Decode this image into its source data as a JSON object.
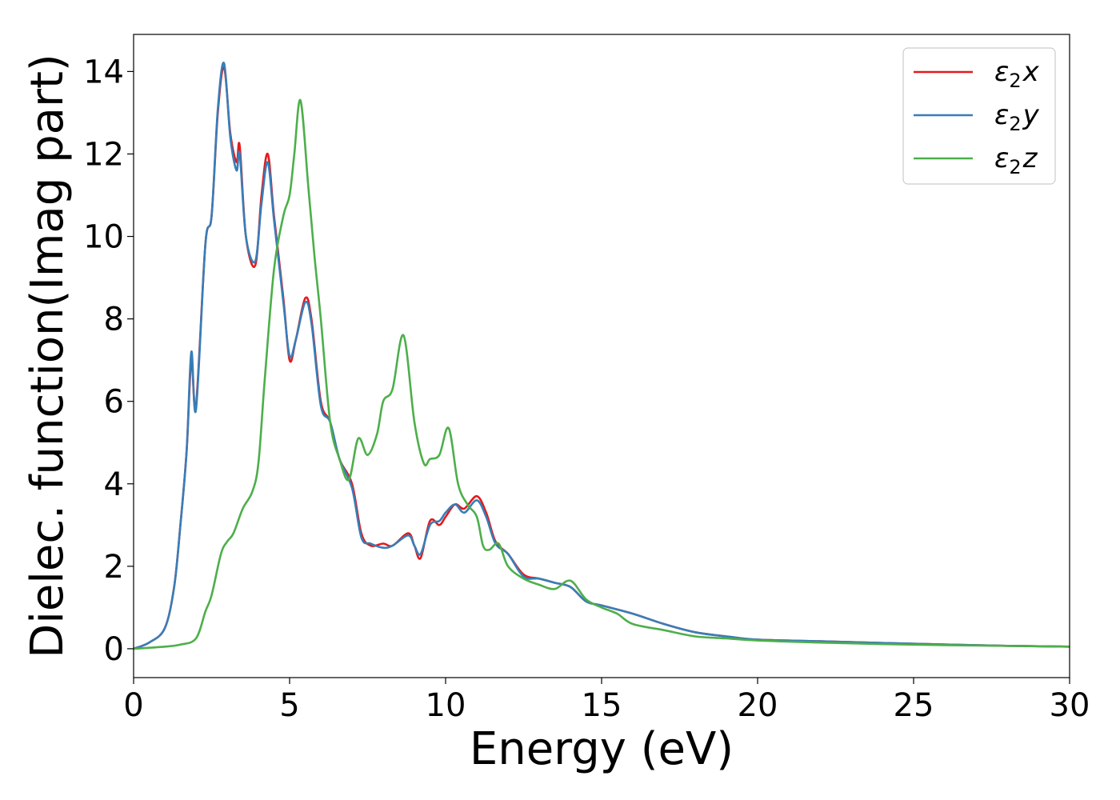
{
  "chart_data": {
    "type": "line",
    "xlabel": "Energy (eV)",
    "ylabel": "Dielec. function(Imag part)",
    "xlim": [
      0,
      30
    ],
    "ylim": [
      -0.7,
      14.9
    ],
    "xticks": [
      "0",
      "5",
      "10",
      "15",
      "20",
      "25",
      "30"
    ],
    "yticks": [
      "0",
      "2",
      "4",
      "6",
      "8",
      "10",
      "12",
      "14"
    ],
    "grid": false,
    "legend_position": "top-right",
    "series": [
      {
        "name": "ε2x",
        "legend_base": "ε",
        "legend_sub": "2",
        "legend_suffix": "x",
        "color": "#e41a1c",
        "x": [
          0,
          0.5,
          1.0,
          1.3,
          1.5,
          1.7,
          1.85,
          2.0,
          2.3,
          2.5,
          2.7,
          2.9,
          3.1,
          3.3,
          3.4,
          3.6,
          3.9,
          4.1,
          4.3,
          4.5,
          4.8,
          5.0,
          5.2,
          5.5,
          5.7,
          6.0,
          6.3,
          6.6,
          7.0,
          7.3,
          7.6,
          8.0,
          8.3,
          8.8,
          9.0,
          9.2,
          9.5,
          9.8,
          10.0,
          10.3,
          10.6,
          11.0,
          11.3,
          11.6,
          12.0,
          12.5,
          13.0,
          13.5,
          14.0,
          14.5,
          15.0,
          16.0,
          17.0,
          18.0,
          19.0,
          20.0,
          22.0,
          25.0,
          28.0,
          30.0
        ],
        "y": [
          0,
          0.15,
          0.5,
          1.5,
          3.0,
          4.8,
          7.0,
          5.9,
          9.8,
          10.5,
          13.0,
          14.1,
          12.5,
          11.8,
          12.2,
          10.0,
          9.3,
          11.0,
          12.0,
          10.5,
          8.5,
          7.0,
          7.5,
          8.5,
          8.0,
          6.0,
          5.5,
          4.6,
          4.0,
          2.8,
          2.5,
          2.55,
          2.5,
          2.8,
          2.5,
          2.2,
          3.1,
          3.0,
          3.2,
          3.5,
          3.4,
          3.7,
          3.3,
          2.6,
          2.3,
          1.8,
          1.7,
          1.6,
          1.5,
          1.15,
          1.05,
          0.85,
          0.6,
          0.4,
          0.3,
          0.22,
          0.18,
          0.12,
          0.07,
          0.05
        ]
      },
      {
        "name": "ε2y",
        "legend_base": "ε",
        "legend_sub": "2",
        "legend_suffix": "y",
        "color": "#377eb8",
        "x": [
          0,
          0.5,
          1.0,
          1.3,
          1.5,
          1.7,
          1.85,
          2.0,
          2.3,
          2.5,
          2.7,
          2.9,
          3.1,
          3.3,
          3.4,
          3.6,
          3.9,
          4.1,
          4.3,
          4.5,
          4.8,
          5.0,
          5.2,
          5.5,
          5.7,
          6.0,
          6.3,
          6.6,
          7.0,
          7.3,
          7.6,
          8.0,
          8.3,
          8.8,
          9.0,
          9.2,
          9.5,
          9.8,
          10.0,
          10.3,
          10.6,
          11.0,
          11.3,
          11.6,
          12.0,
          12.5,
          13.0,
          13.5,
          14.0,
          14.5,
          15.0,
          16.0,
          17.0,
          18.0,
          19.0,
          20.0,
          22.0,
          25.0,
          28.0,
          30.0
        ],
        "y": [
          0,
          0.15,
          0.5,
          1.5,
          3.0,
          4.8,
          7.2,
          5.8,
          9.8,
          10.5,
          13.1,
          14.2,
          12.4,
          11.6,
          12.0,
          10.0,
          9.4,
          10.8,
          11.8,
          10.4,
          8.4,
          7.1,
          7.5,
          8.4,
          7.9,
          5.9,
          5.5,
          4.6,
          3.9,
          2.7,
          2.55,
          2.45,
          2.5,
          2.75,
          2.5,
          2.3,
          3.0,
          3.1,
          3.3,
          3.5,
          3.3,
          3.6,
          3.2,
          2.55,
          2.3,
          1.75,
          1.7,
          1.6,
          1.5,
          1.15,
          1.05,
          0.85,
          0.6,
          0.4,
          0.3,
          0.22,
          0.18,
          0.12,
          0.07,
          0.05
        ]
      },
      {
        "name": "ε2z",
        "legend_base": "ε",
        "legend_sub": "2",
        "legend_suffix": "z",
        "color": "#4daf4a",
        "x": [
          0,
          1.0,
          1.5,
          2.0,
          2.3,
          2.5,
          2.8,
          3.0,
          3.2,
          3.5,
          3.8,
          4.0,
          4.2,
          4.5,
          4.8,
          5.0,
          5.15,
          5.35,
          5.6,
          5.8,
          6.0,
          6.3,
          6.6,
          6.9,
          7.2,
          7.5,
          7.8,
          8.0,
          8.3,
          8.65,
          9.0,
          9.3,
          9.5,
          9.8,
          10.1,
          10.4,
          10.7,
          11.0,
          11.2,
          11.4,
          11.7,
          12.0,
          12.5,
          13.0,
          13.5,
          14.0,
          14.5,
          15.0,
          15.5,
          16.0,
          17.0,
          18.0,
          19.0,
          20.0,
          22.0,
          25.0,
          28.0,
          30.0
        ],
        "y": [
          0,
          0.05,
          0.1,
          0.25,
          0.9,
          1.3,
          2.3,
          2.6,
          2.8,
          3.4,
          3.8,
          4.5,
          6.5,
          9.2,
          10.5,
          11.0,
          12.0,
          13.3,
          11.2,
          9.5,
          8.0,
          5.5,
          4.6,
          4.1,
          5.1,
          4.7,
          5.2,
          6.0,
          6.3,
          7.6,
          5.5,
          4.5,
          4.6,
          4.7,
          5.35,
          4.0,
          3.5,
          3.2,
          2.5,
          2.4,
          2.55,
          2.0,
          1.7,
          1.55,
          1.45,
          1.65,
          1.2,
          1.0,
          0.85,
          0.6,
          0.45,
          0.3,
          0.25,
          0.2,
          0.15,
          0.1,
          0.07,
          0.05
        ]
      }
    ]
  }
}
